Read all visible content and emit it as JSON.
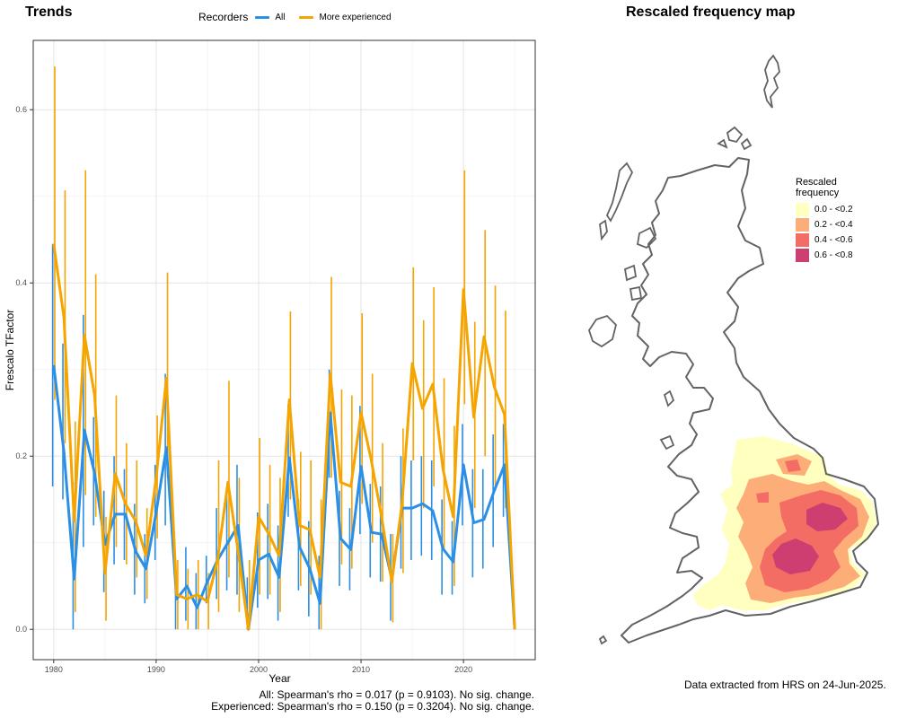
{
  "trends_panel": {
    "title": "Trends",
    "legend_title": "Recorders",
    "stats": [
      "All: Spearman's rho = 0.017 (p = 0.9103). No sig. change.",
      "Experienced: Spearman's rho = 0.150 (p = 0.3204). No sig. change."
    ]
  },
  "chart_data": {
    "type": "line",
    "xlabel": "Year",
    "ylabel": "Frescalo TFactor",
    "xlim": [
      1978,
      2027
    ],
    "ylim": [
      -0.035,
      0.68
    ],
    "xticks": [
      1980,
      1990,
      2000,
      2010,
      2020
    ],
    "yticks": [
      0.0,
      0.2,
      0.4,
      0.6
    ],
    "grid": true,
    "legend_position": "top",
    "series": [
      {
        "name": "All",
        "color": "#2b8fe6",
        "x": [
          1980,
          1981,
          1982,
          1983,
          1984,
          1985,
          1986,
          1987,
          1988,
          1989,
          1990,
          1991,
          1992,
          1993,
          1994,
          1995,
          1996,
          1997,
          1998,
          1999,
          2000,
          2001,
          2002,
          2003,
          2004,
          2005,
          2006,
          2007,
          2008,
          2009,
          2010,
          2011,
          2012,
          2013,
          2014,
          2015,
          2016,
          2017,
          2018,
          2019,
          2020,
          2021,
          2022,
          2023,
          2024,
          2025
        ],
        "y": [
          0.305,
          0.205,
          0.058,
          0.23,
          0.18,
          0.098,
          0.133,
          0.133,
          0.09,
          0.07,
          0.135,
          0.21,
          0.035,
          0.05,
          0.025,
          0.055,
          0.08,
          0.1,
          0.12,
          0.0,
          0.08,
          0.087,
          0.06,
          0.198,
          0.095,
          0.07,
          0.03,
          0.25,
          0.105,
          0.092,
          0.188,
          0.112,
          0.11,
          0.058,
          0.14,
          0.14,
          0.145,
          0.137,
          0.093,
          0.078,
          0.19,
          0.123,
          0.127,
          0.16,
          0.19,
          0.0
        ],
        "lower": [
          0.165,
          0.15,
          0.0,
          0.095,
          0.12,
          0.043,
          0.075,
          0.08,
          0.04,
          0.03,
          0.08,
          0.12,
          0.0,
          0.01,
          0.0,
          0.03,
          0.035,
          0.045,
          0.04,
          0.0,
          0.025,
          0.035,
          0.01,
          0.13,
          0.045,
          0.015,
          0.0,
          0.175,
          0.05,
          0.045,
          0.11,
          0.06,
          0.055,
          0.01,
          0.07,
          0.08,
          0.085,
          0.08,
          0.04,
          0.04,
          0.12,
          0.06,
          0.07,
          0.095,
          0.13,
          0.0
        ],
        "upper": [
          0.445,
          0.33,
          0.17,
          0.363,
          0.245,
          0.16,
          0.2,
          0.185,
          0.145,
          0.11,
          0.19,
          0.295,
          0.08,
          0.095,
          0.065,
          0.085,
          0.14,
          0.165,
          0.19,
          0.06,
          0.135,
          0.145,
          0.12,
          0.26,
          0.15,
          0.125,
          0.085,
          0.3,
          0.16,
          0.14,
          0.258,
          0.168,
          0.165,
          0.11,
          0.2,
          0.195,
          0.2,
          0.195,
          0.15,
          0.125,
          0.237,
          0.185,
          0.185,
          0.225,
          0.237,
          0.0
        ]
      },
      {
        "name": "More experienced",
        "color": "#f5a400",
        "x": [
          1980,
          1981,
          1982,
          1983,
          1984,
          1985,
          1986,
          1987,
          1988,
          1989,
          1990,
          1991,
          1992,
          1993,
          1994,
          1995,
          1996,
          1997,
          1998,
          1999,
          2000,
          2001,
          2002,
          2003,
          2004,
          2005,
          2006,
          2007,
          2008,
          2009,
          2010,
          2011,
          2012,
          2013,
          2014,
          2015,
          2016,
          2017,
          2018,
          2019,
          2020,
          2021,
          2022,
          2023,
          2024,
          2025
        ],
        "y": [
          0.445,
          0.36,
          0.125,
          0.34,
          0.27,
          0.065,
          0.18,
          0.145,
          0.125,
          0.085,
          0.175,
          0.29,
          0.04,
          0.035,
          0.04,
          0.032,
          0.08,
          0.17,
          0.09,
          0.0,
          0.13,
          0.11,
          0.085,
          0.265,
          0.12,
          0.115,
          0.06,
          0.295,
          0.17,
          0.165,
          0.25,
          0.195,
          0.13,
          0.055,
          0.145,
          0.307,
          0.255,
          0.283,
          0.185,
          0.13,
          0.392,
          0.245,
          0.338,
          0.28,
          0.248,
          0.0
        ],
        "lower": [
          0.265,
          0.215,
          0.02,
          0.155,
          0.13,
          0.01,
          0.095,
          0.075,
          0.06,
          0.035,
          0.105,
          0.175,
          0.0,
          0.0,
          0.0,
          0.0,
          0.02,
          0.06,
          0.02,
          0.0,
          0.04,
          0.04,
          0.02,
          0.15,
          0.05,
          0.04,
          0.0,
          0.175,
          0.075,
          0.07,
          0.145,
          0.1,
          0.055,
          0.008,
          0.065,
          0.195,
          0.14,
          0.165,
          0.09,
          0.05,
          0.26,
          0.14,
          0.2,
          0.16,
          0.14,
          0.0
        ],
        "upper": [
          0.65,
          0.507,
          0.24,
          0.53,
          0.41,
          0.13,
          0.27,
          0.215,
          0.195,
          0.14,
          0.247,
          0.412,
          0.08,
          0.07,
          0.08,
          0.065,
          0.195,
          0.287,
          0.175,
          0.08,
          0.221,
          0.19,
          0.175,
          0.367,
          0.205,
          0.195,
          0.15,
          0.407,
          0.277,
          0.27,
          0.365,
          0.295,
          0.215,
          0.11,
          0.232,
          0.418,
          0.357,
          0.395,
          0.29,
          0.235,
          0.53,
          0.355,
          0.461,
          0.397,
          0.368,
          0.0
        ]
      }
    ]
  },
  "map_panel": {
    "title": "Rescaled frequency map",
    "legend_title_line1": "Rescaled",
    "legend_title_line2": "frequency",
    "legend_items": [
      {
        "label": "0.0 - <0.2",
        "color": "#ffffc0"
      },
      {
        "label": "0.2 - <0.4",
        "color": "#fdae78"
      },
      {
        "label": "0.4 - <0.6",
        "color": "#f46d64"
      },
      {
        "label": "0.6 - <0.8",
        "color": "#cc3f70"
      }
    ],
    "outline_color": "#636363",
    "footer": "Data extracted from HRS on 24-Jun-2025."
  }
}
